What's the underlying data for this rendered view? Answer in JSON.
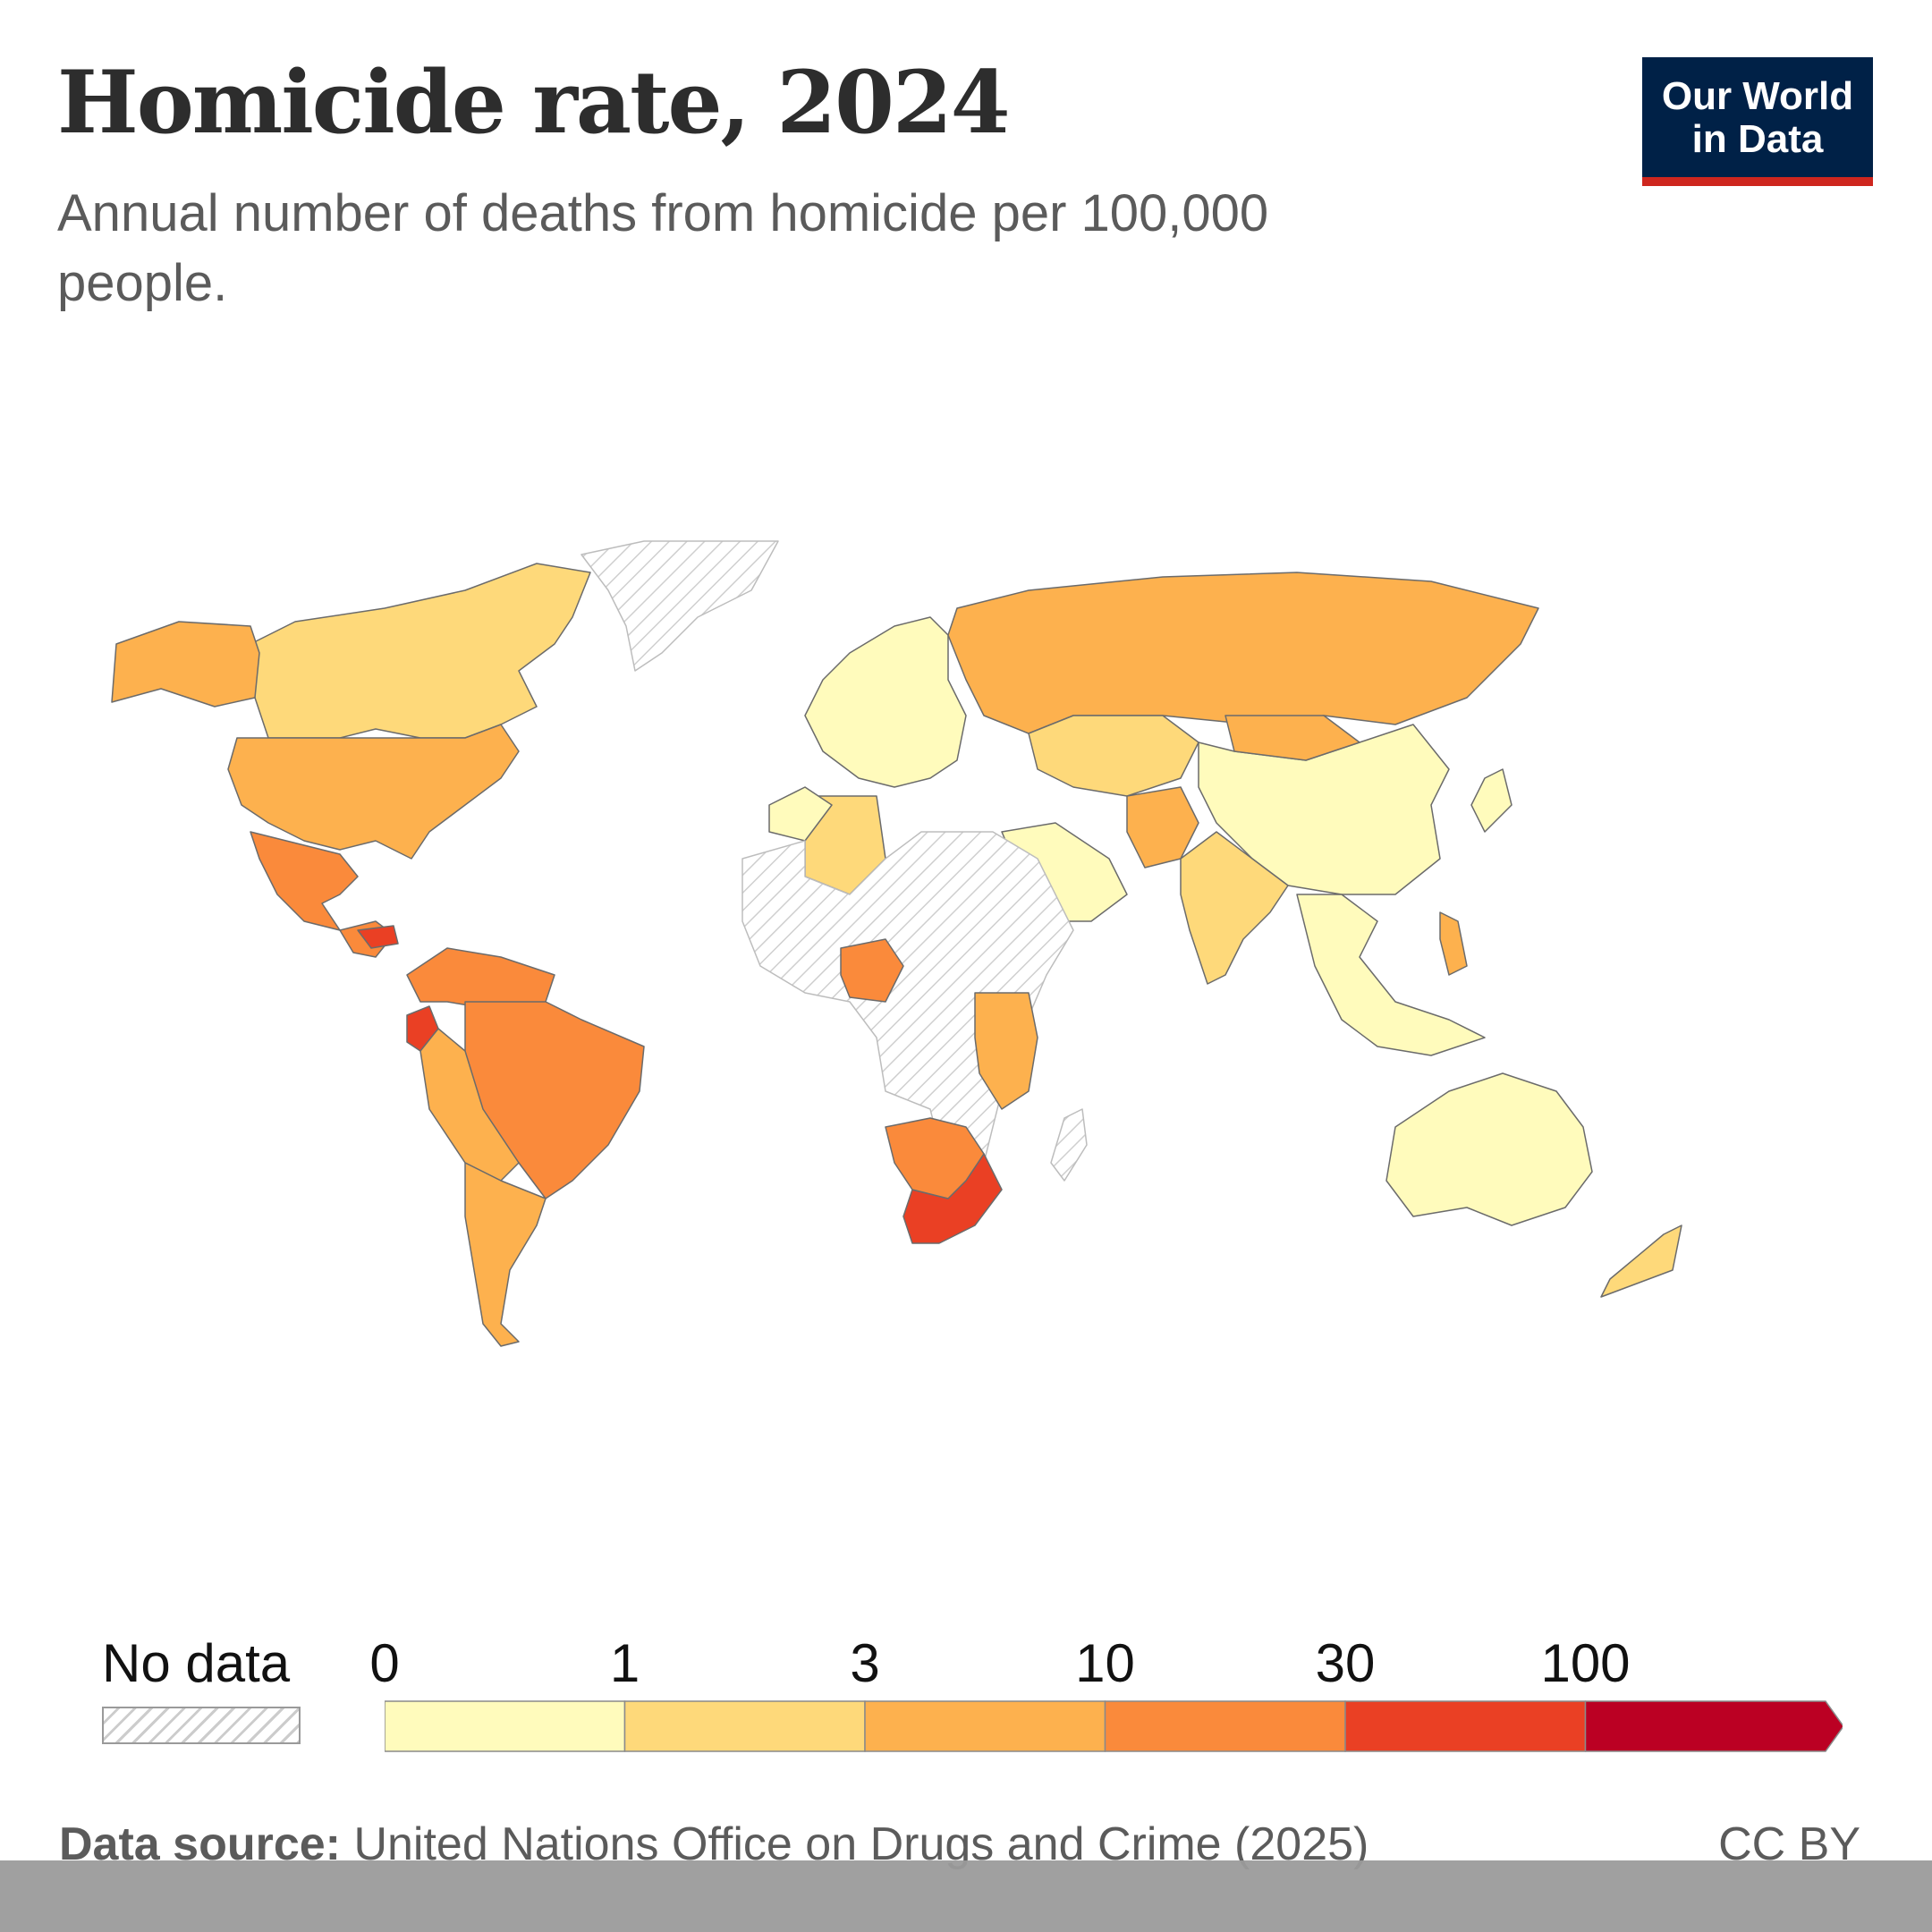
{
  "header": {
    "title": "Homicide rate, 2024",
    "subtitle": "Annual number of deaths from homicide per 100,000 people."
  },
  "logo": {
    "line1": "Our World",
    "line2": "in Data",
    "bg": "#002147",
    "accent": "#ce261e"
  },
  "legend": {
    "no_data_label": "No data",
    "ticks": [
      "0",
      "1",
      "3",
      "10",
      "30",
      "100"
    ],
    "bins": [
      {
        "range": "0-1",
        "color": "#fffbbc"
      },
      {
        "range": "1-3",
        "color": "#fed97a"
      },
      {
        "range": "3-10",
        "color": "#fdb14e"
      },
      {
        "range": "10-30",
        "color": "#fa8a3b"
      },
      {
        "range": "30-100",
        "color": "#ea4024"
      },
      {
        "range": "100+",
        "color": "#bb0023"
      }
    ]
  },
  "footer": {
    "source_label": "Data source:",
    "source_text": "United Nations Office on Drugs and Crime (2025)",
    "license": "CC BY"
  },
  "chart_data": {
    "type": "choropleth",
    "year": "2024",
    "scale": [
      "0",
      "1",
      "3",
      "10",
      "30",
      "100"
    ],
    "regions": [
      {
        "name": "Canada",
        "bin": "1-3"
      },
      {
        "name": "United States",
        "bin": "3-10"
      },
      {
        "name": "Alaska",
        "bin": "3-10"
      },
      {
        "name": "Greenland",
        "bin": "no-data"
      },
      {
        "name": "Mexico",
        "bin": "10-30"
      },
      {
        "name": "Central America",
        "bin": "10-30"
      },
      {
        "name": "Honduras",
        "bin": "30-100"
      },
      {
        "name": "Colombia/Venezuela",
        "bin": "10-30"
      },
      {
        "name": "Ecuador",
        "bin": "30-100"
      },
      {
        "name": "Brazil",
        "bin": "10-30"
      },
      {
        "name": "Peru/Bolivia",
        "bin": "3-10"
      },
      {
        "name": "Argentina/Chile",
        "bin": "3-10"
      },
      {
        "name": "Europe",
        "bin": "0-1"
      },
      {
        "name": "Russia",
        "bin": "3-10"
      },
      {
        "name": "Kazakhstan/Central Asia",
        "bin": "1-3"
      },
      {
        "name": "China",
        "bin": "0-1"
      },
      {
        "name": "Mongolia",
        "bin": "3-10"
      },
      {
        "name": "India",
        "bin": "1-3"
      },
      {
        "name": "Pakistan/Afghanistan",
        "bin": "3-10"
      },
      {
        "name": "Saudi Arabia",
        "bin": "0-1"
      },
      {
        "name": "Southeast Asia",
        "bin": "0-1"
      },
      {
        "name": "Philippines",
        "bin": "3-10"
      },
      {
        "name": "Japan",
        "bin": "0-1"
      },
      {
        "name": "Australia",
        "bin": "0-1"
      },
      {
        "name": "New Zealand",
        "bin": "1-3"
      },
      {
        "name": "Algeria",
        "bin": "1-3"
      },
      {
        "name": "Morocco",
        "bin": "0-1"
      },
      {
        "name": "North/Central Africa",
        "bin": "no-data"
      },
      {
        "name": "Nigeria",
        "bin": "10-30"
      },
      {
        "name": "East Africa",
        "bin": "3-10"
      },
      {
        "name": "South Africa",
        "bin": "30-100"
      },
      {
        "name": "Namibia/Botswana",
        "bin": "10-30"
      },
      {
        "name": "Madagascar",
        "bin": "no-data"
      }
    ]
  }
}
